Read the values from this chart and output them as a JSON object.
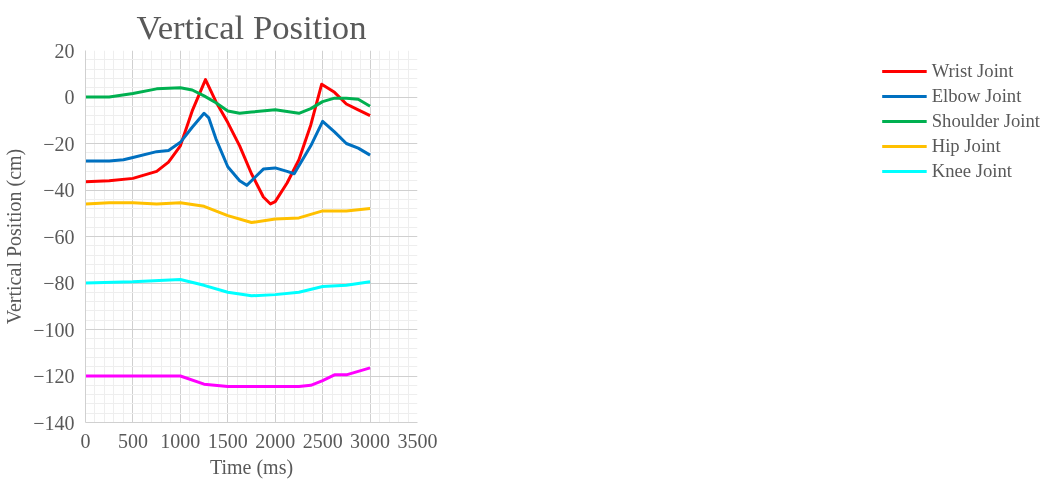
{
  "chart_data": {
    "type": "line",
    "title": "Vertical Position",
    "xlabel": "Time (ms)",
    "ylabel": "Vertical Position (cm)",
    "xlim": [
      0,
      3500
    ],
    "xticks": [
      0,
      500,
      1000,
      1500,
      2000,
      2500,
      3000,
      3500
    ],
    "ylim": [
      -140,
      20
    ],
    "yticks": [
      -140,
      -120,
      -100,
      -80,
      -60,
      -40,
      -20,
      0,
      20
    ],
    "grid": true,
    "legend": "right",
    "line_style": "solid",
    "marker": "none",
    "series": [
      {
        "name": "Wrist Joint",
        "color": "#ff0000",
        "x": [
          0,
          250,
          500,
          750,
          875,
          1000,
          1125,
          1265,
          1375,
          1500,
          1625,
          1750,
          1875,
          1950,
          2000,
          2125,
          2250,
          2375,
          2490,
          2625,
          2750,
          2875,
          3000
        ],
        "values": [
          -36.5,
          -36,
          -35,
          -32,
          -28,
          -21,
          -6,
          7.5,
          -2,
          -11,
          -21,
          -33,
          -43,
          -46,
          -45,
          -37,
          -27,
          -12,
          5.5,
          2,
          -3,
          -5.5,
          -8
        ]
      },
      {
        "name": "Elbow Joint",
        "color": "#0070c0",
        "x": [
          0,
          250,
          400,
          500,
          750,
          875,
          1000,
          1125,
          1250,
          1300,
          1375,
          1500,
          1625,
          1700,
          1750,
          1875,
          2000,
          2125,
          2200,
          2375,
          2500,
          2625,
          2750,
          2875,
          3000
        ],
        "values": [
          -27.5,
          -27.5,
          -27,
          -26,
          -23.5,
          -23,
          -19.5,
          -13,
          -7,
          -9,
          -18,
          -30,
          -36,
          -38,
          -36,
          -31,
          -30.5,
          -32,
          -33,
          -21,
          -10.5,
          -15,
          -20,
          -22,
          -25
        ]
      },
      {
        "name": "Shoulder Joint",
        "color": "#00b050",
        "x": [
          0,
          250,
          500,
          750,
          1000,
          1125,
          1250,
          1375,
          1500,
          1625,
          1750,
          2000,
          2250,
          2375,
          2500,
          2625,
          2750,
          2875,
          3000
        ],
        "values": [
          0,
          0,
          1.5,
          3.5,
          4,
          3,
          0.5,
          -2.5,
          -6,
          -7,
          -6.5,
          -5.5,
          -7,
          -5,
          -2,
          -0.5,
          -0.5,
          -1,
          -4
        ]
      },
      {
        "name": "Hip Joint",
        "color": "#ffc000",
        "x": [
          0,
          250,
          500,
          750,
          1000,
          1250,
          1500,
          1750,
          2000,
          2250,
          2500,
          2750,
          3000
        ],
        "values": [
          -46,
          -45.5,
          -45.5,
          -46,
          -45.5,
          -47,
          -51,
          -54,
          -52.5,
          -52,
          -49,
          -49,
          -48
        ]
      },
      {
        "name": "Knee Joint",
        "color": "#00ffff",
        "x": [
          0,
          500,
          1000,
          1250,
          1500,
          1750,
          2000,
          2250,
          2500,
          2750,
          3000
        ],
        "values": [
          -80,
          -79.5,
          -78.5,
          -81,
          -84,
          -85.5,
          -85,
          -84,
          -81.5,
          -81,
          -79.5
        ]
      },
      {
        "color": "#ff00ff",
        "x": [
          0,
          500,
          1000,
          1250,
          1500,
          2000,
          2250,
          2375,
          2500,
          2625,
          2750,
          3000
        ],
        "values": [
          -120,
          -120,
          -120,
          -123.5,
          -124.5,
          -124.5,
          -124.5,
          -124,
          -122,
          -119.5,
          -119.5,
          -116.5
        ]
      }
    ]
  }
}
